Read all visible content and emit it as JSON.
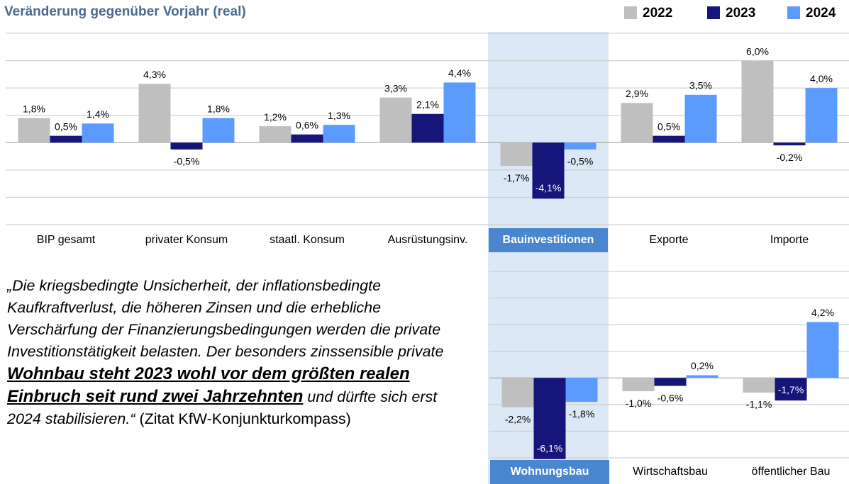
{
  "title": "Veränderung gegenüber Vorjahr (real)",
  "quote": {
    "part1": "„Die kriegsbedingte Unsicherheit, der inflationsbedingte Kaufkraftverlust, die höheren Zinsen und die erhebliche Verschärfung der Finanzierungsbedingungen werden die private Investitionstätigkeit belasten. Der besonders zinssensible private",
    "emphasis": "Wohnbau steht 2023 wohl vor dem größten realen Einbruch seit rund zwei Jahrzehnten",
    "part2": "und dürfte sich erst 2024 stabilisieren.“",
    "source": "(Zitat KfW-Konjunkturkompass)"
  },
  "chart_data": [
    {
      "type": "bar",
      "categories": [
        "BIP gesamt",
        "privater Konsum",
        "staatl. Konsum",
        "Ausrüstungsinv.",
        "Bauinvestitionen",
        "Exporte",
        "Importe"
      ],
      "highlight": 4,
      "series": [
        {
          "name": "2022",
          "color": "#bfbfbf",
          "values": [
            1.8,
            4.3,
            1.2,
            3.3,
            -1.7,
            2.9,
            6.0
          ],
          "value_labels": [
            "1,8%",
            "4,3%",
            "1,2%",
            "3,3%",
            "-1,7%",
            "2,9%",
            "6,0%"
          ]
        },
        {
          "name": "2023",
          "color": "#15157a",
          "values": [
            0.5,
            -0.5,
            0.6,
            2.1,
            -4.1,
            0.5,
            -0.2
          ],
          "value_labels": [
            "0,5%",
            "-0,5%",
            "0,6%",
            "2,1%",
            "-4,1%",
            "0,5%",
            "-0,2%"
          ]
        },
        {
          "name": "2024",
          "color": "#5b9bff",
          "values": [
            1.4,
            1.8,
            1.3,
            4.4,
            -0.5,
            3.5,
            4.0
          ],
          "value_labels": [
            "1,4%",
            "1,8%",
            "1,3%",
            "4,4%",
            "-0,5%",
            "3,5%",
            "4,0%"
          ]
        }
      ],
      "ylim": [
        -6,
        8
      ],
      "yticks": [
        -6,
        -4,
        -2,
        0,
        2,
        4,
        6,
        8
      ],
      "grid": true
    },
    {
      "type": "bar",
      "categories": [
        "Wohnungsbau",
        "Wirtschaftsbau",
        "öffentlicher Bau"
      ],
      "highlight": 0,
      "series": [
        {
          "color": "#bfbfbf",
          "values": [
            -2.2,
            -1.0,
            -1.1
          ],
          "value_labels": [
            "-2,2%",
            "-1,0%",
            "-1,1%"
          ]
        },
        {
          "color": "#15157a",
          "values": [
            -6.1,
            -0.6,
            -1.7
          ],
          "value_labels": [
            "-6,1%",
            "-0,6%",
            "-1,7%"
          ]
        },
        {
          "color": "#5b9bff",
          "values": [
            -1.8,
            0.2,
            4.2
          ],
          "value_labels": [
            "-1,8%",
            "0,2%",
            "4,2%"
          ]
        }
      ],
      "ylim": [
        -6,
        8
      ],
      "yticks": [
        -6,
        -4,
        -2,
        0,
        2,
        4,
        6,
        8
      ],
      "grid": true
    }
  ]
}
